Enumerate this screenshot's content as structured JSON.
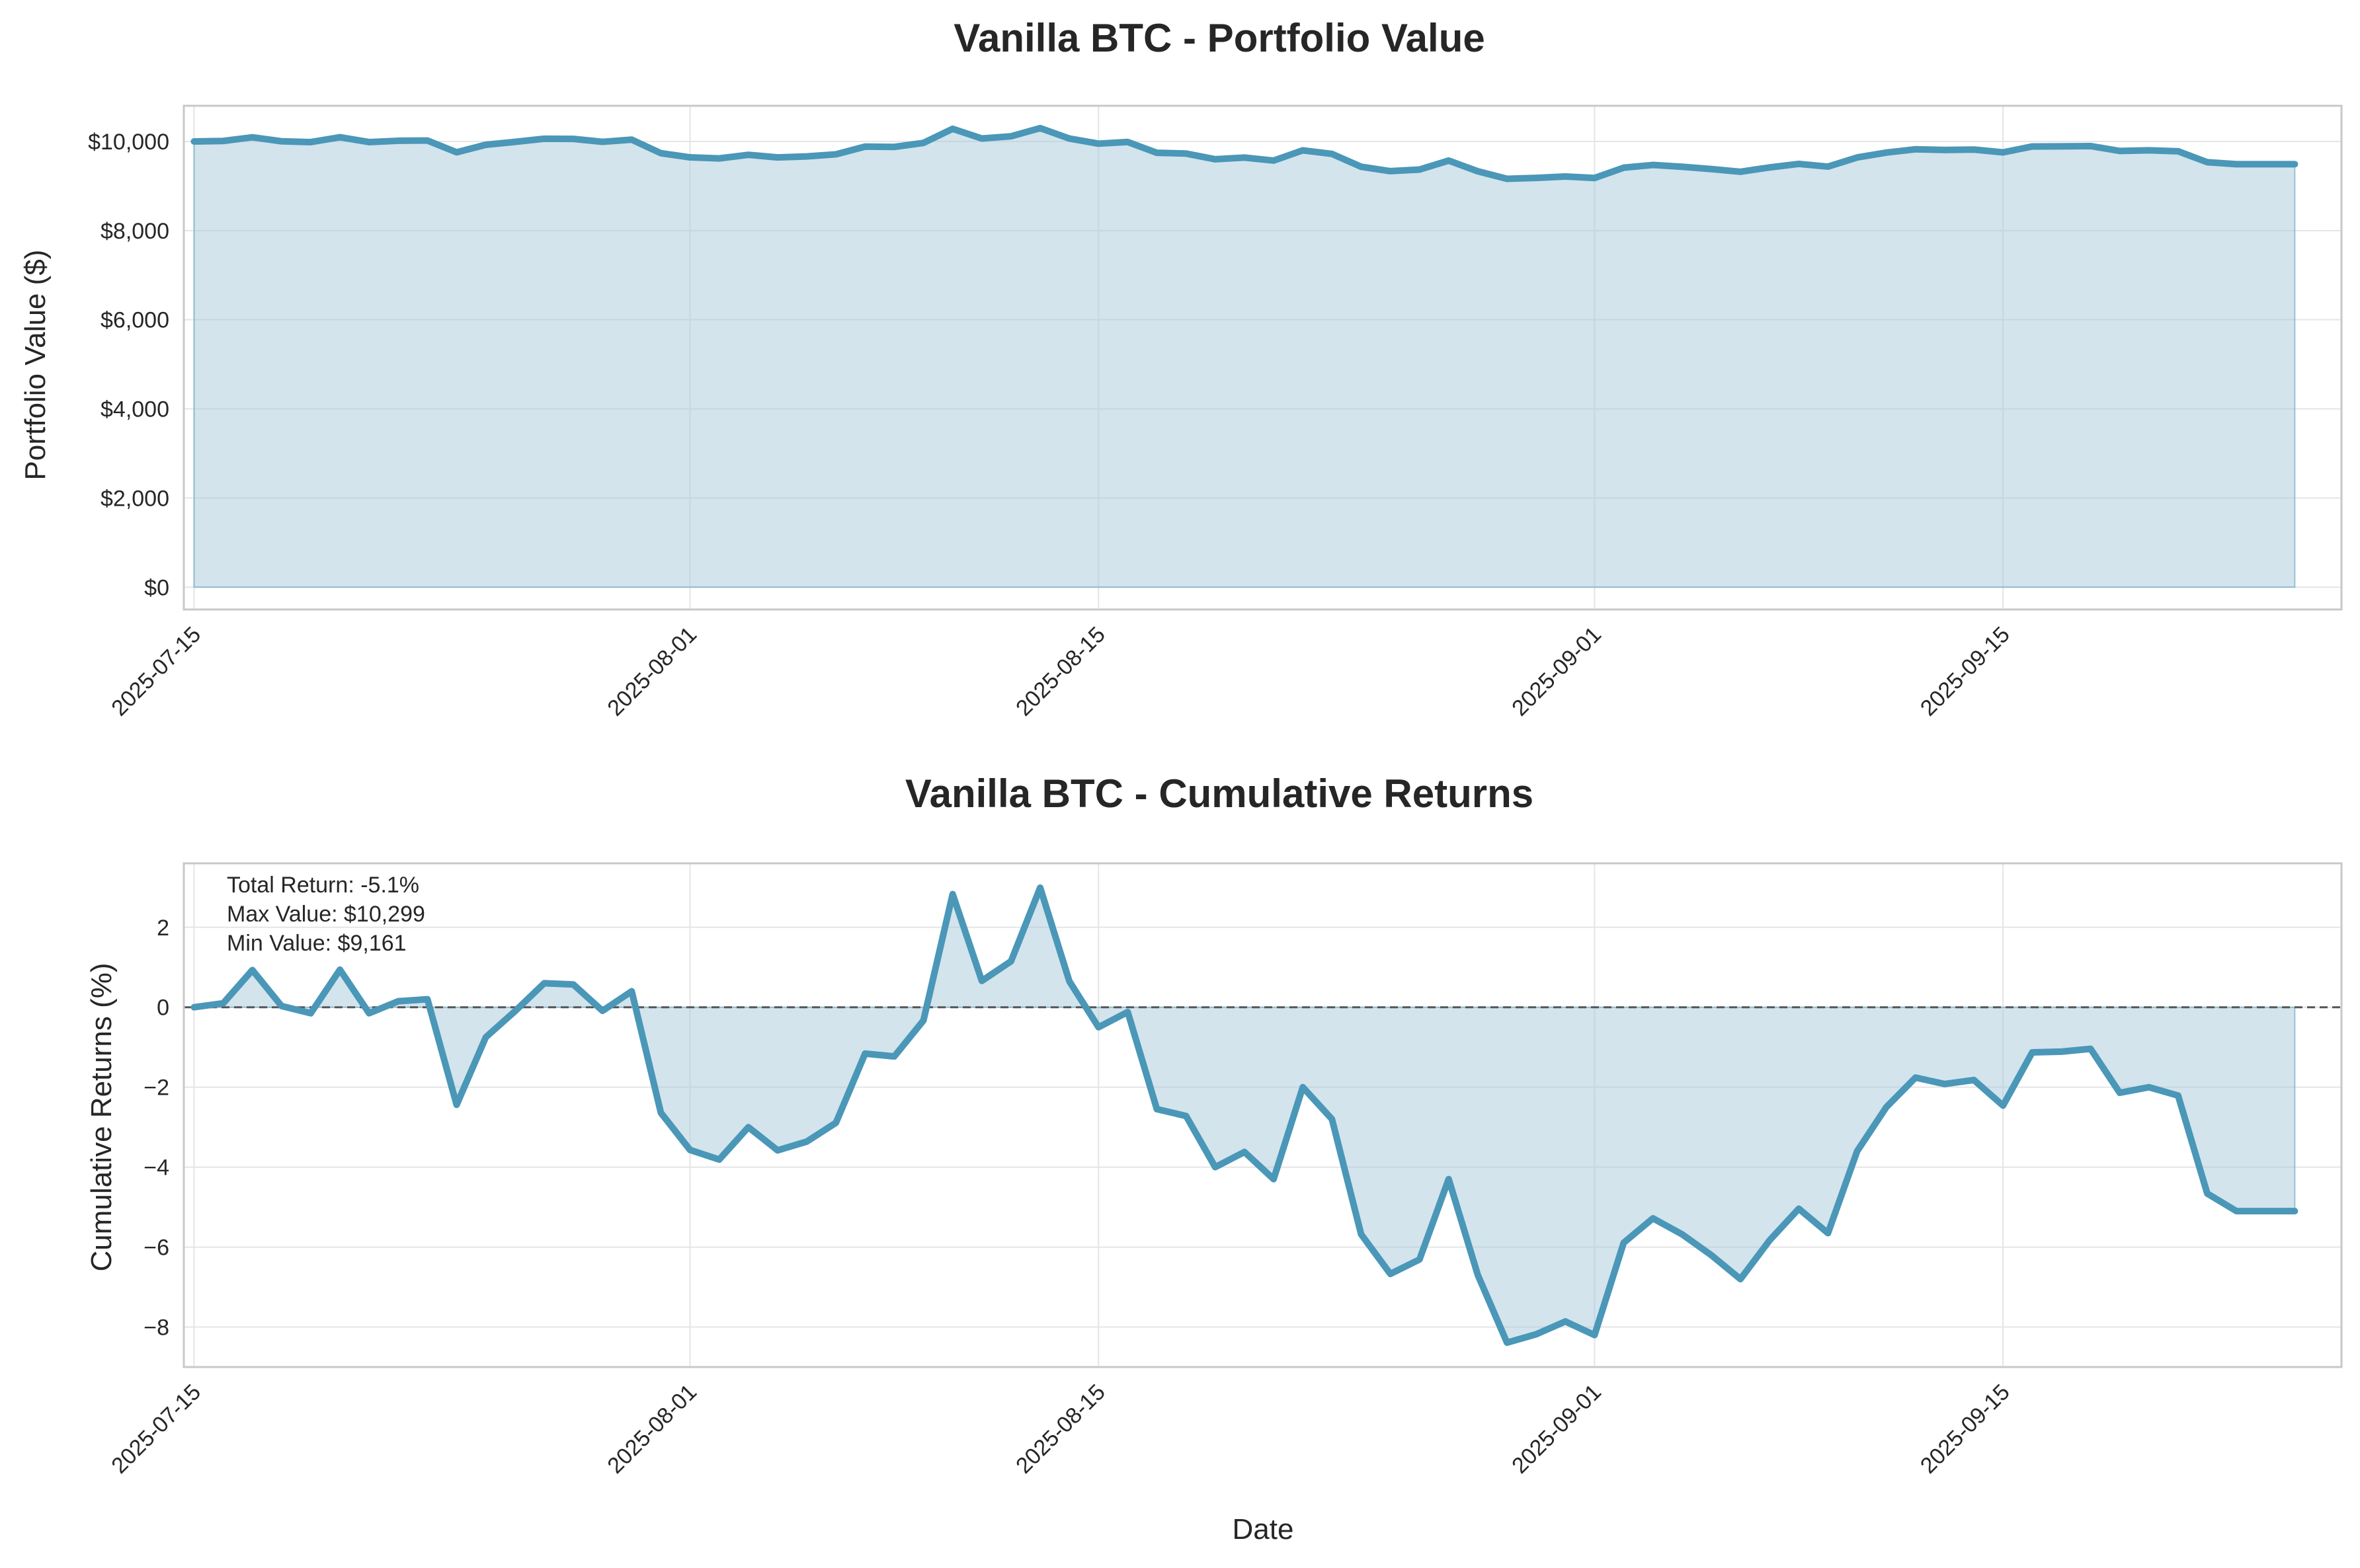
{
  "colors": {
    "line": "#4a97b8",
    "fill": "#a7cadc",
    "grid": "#e5e5e5",
    "spine": "#c8c8c8",
    "zero_line": "#555555",
    "text": "#262626"
  },
  "chart_data": [
    {
      "type": "area",
      "title": "Vanilla BTC - Portfolio Value",
      "xlabel": "",
      "ylabel": "Portfolio Value ($)",
      "x_ticks": [
        "2025-07-15",
        "2025-08-01",
        "2025-08-15",
        "2025-09-01",
        "2025-09-15"
      ],
      "y_ticks": [
        "$0",
        "$2,000",
        "$4,000",
        "$6,000",
        "$8,000",
        "$10,000"
      ],
      "y_tick_values": [
        0,
        2000,
        4000,
        6000,
        8000,
        10000
      ],
      "xlim": [
        "2025-07-15",
        "2025-09-26"
      ],
      "ylim": [
        -500,
        10800
      ],
      "grid": true,
      "series": [
        {
          "x": [
            "2025-07-15",
            "2025-07-16",
            "2025-07-17",
            "2025-07-18",
            "2025-07-19",
            "2025-07-20",
            "2025-07-21",
            "2025-07-22",
            "2025-07-23",
            "2025-07-24",
            "2025-07-25",
            "2025-07-26",
            "2025-07-27",
            "2025-07-28",
            "2025-07-29",
            "2025-07-30",
            "2025-07-31",
            "2025-08-01",
            "2025-08-02",
            "2025-08-03",
            "2025-08-04",
            "2025-08-05",
            "2025-08-06",
            "2025-08-07",
            "2025-08-08",
            "2025-08-09",
            "2025-08-10",
            "2025-08-11",
            "2025-08-12",
            "2025-08-13",
            "2025-08-14",
            "2025-08-15",
            "2025-08-16",
            "2025-08-17",
            "2025-08-18",
            "2025-08-19",
            "2025-08-20",
            "2025-08-21",
            "2025-08-22",
            "2025-08-23",
            "2025-08-24",
            "2025-08-25",
            "2025-08-26",
            "2025-08-27",
            "2025-08-28",
            "2025-08-29",
            "2025-08-30",
            "2025-08-31",
            "2025-09-01",
            "2025-09-02",
            "2025-09-03",
            "2025-09-04",
            "2025-09-05",
            "2025-09-06",
            "2025-09-07",
            "2025-09-08",
            "2025-09-09",
            "2025-09-10",
            "2025-09-11",
            "2025-09-12",
            "2025-09-13",
            "2025-09-14",
            "2025-09-15",
            "2025-09-16",
            "2025-09-17",
            "2025-09-18",
            "2025-09-19",
            "2025-09-20",
            "2025-09-21",
            "2025-09-22",
            "2025-09-23",
            "2025-09-24",
            "2025-09-25"
          ],
          "values": [
            10000,
            10010,
            10093,
            10003,
            9985,
            10094,
            9985,
            10015,
            10020,
            9756,
            9925,
            9990,
            10060,
            10057,
            9991,
            10040,
            9736,
            9643,
            9619,
            9700,
            9642,
            9664,
            9711,
            9884,
            9877,
            9967,
            10283,
            10066,
            10115,
            10299,
            10065,
            9950,
            9988,
            9745,
            9728,
            9600,
            9638,
            9570,
            9800,
            9720,
            9432,
            9333,
            9369,
            9570,
            9330,
            9161,
            9182,
            9214,
            9180,
            9411,
            9472,
            9432,
            9380,
            9320,
            9417,
            9496,
            9435,
            9640,
            9750,
            9824,
            9808,
            9818,
            9754,
            9887,
            9889,
            9896,
            9786,
            9800,
            9779,
            9534,
            9490,
            9490,
            9490
          ]
        }
      ]
    },
    {
      "type": "area",
      "title": "Vanilla BTC - Cumulative Returns",
      "xlabel": "Date",
      "ylabel": "Cumulative Returns (%)",
      "x_ticks": [
        "2025-07-15",
        "2025-08-01",
        "2025-08-15",
        "2025-09-01",
        "2025-09-15"
      ],
      "y_ticks": [
        "−8",
        "−6",
        "−4",
        "−2",
        "0",
        "2"
      ],
      "y_tick_values": [
        -8,
        -6,
        -4,
        -2,
        0,
        2
      ],
      "xlim": [
        "2025-07-15",
        "2025-09-26"
      ],
      "ylim": [
        -9.0,
        3.6
      ],
      "grid": true,
      "annotations": [
        "Total Return: -5.1%",
        "Max Value: $10,299",
        "Min Value: $9,161"
      ],
      "series": [
        {
          "x": [
            "2025-07-15",
            "2025-07-16",
            "2025-07-17",
            "2025-07-18",
            "2025-07-19",
            "2025-07-20",
            "2025-07-21",
            "2025-07-22",
            "2025-07-23",
            "2025-07-24",
            "2025-07-25",
            "2025-07-26",
            "2025-07-27",
            "2025-07-28",
            "2025-07-29",
            "2025-07-30",
            "2025-07-31",
            "2025-08-01",
            "2025-08-02",
            "2025-08-03",
            "2025-08-04",
            "2025-08-05",
            "2025-08-06",
            "2025-08-07",
            "2025-08-08",
            "2025-08-09",
            "2025-08-10",
            "2025-08-11",
            "2025-08-12",
            "2025-08-13",
            "2025-08-14",
            "2025-08-15",
            "2025-08-16",
            "2025-08-17",
            "2025-08-18",
            "2025-08-19",
            "2025-08-20",
            "2025-08-21",
            "2025-08-22",
            "2025-08-23",
            "2025-08-24",
            "2025-08-25",
            "2025-08-26",
            "2025-08-27",
            "2025-08-28",
            "2025-08-29",
            "2025-08-30",
            "2025-08-31",
            "2025-09-01",
            "2025-09-02",
            "2025-09-03",
            "2025-09-04",
            "2025-09-05",
            "2025-09-06",
            "2025-09-07",
            "2025-09-08",
            "2025-09-09",
            "2025-09-10",
            "2025-09-11",
            "2025-09-12",
            "2025-09-13",
            "2025-09-14",
            "2025-09-15",
            "2025-09-16",
            "2025-09-17",
            "2025-09-18",
            "2025-09-19",
            "2025-09-20",
            "2025-09-21",
            "2025-09-22",
            "2025-09-23",
            "2025-09-24",
            "2025-09-25"
          ],
          "values": [
            0.0,
            0.1,
            0.93,
            0.03,
            -0.15,
            0.94,
            -0.15,
            0.15,
            0.2,
            -2.44,
            -0.75,
            -0.1,
            0.6,
            0.57,
            -0.09,
            0.4,
            -2.64,
            -3.57,
            -3.81,
            -3.0,
            -3.58,
            -3.36,
            -2.89,
            -1.16,
            -1.23,
            -0.33,
            2.83,
            0.66,
            1.15,
            2.99,
            0.65,
            -0.5,
            -0.12,
            -2.55,
            -2.72,
            -4.0,
            -3.62,
            -4.3,
            -2.0,
            -2.8,
            -5.68,
            -6.67,
            -6.31,
            -4.3,
            -6.7,
            -8.39,
            -8.18,
            -7.86,
            -8.2,
            -5.89,
            -5.28,
            -5.68,
            -6.2,
            -6.8,
            -5.83,
            -5.04,
            -5.65,
            -3.6,
            -2.5,
            -1.76,
            -1.92,
            -1.82,
            -2.46,
            -1.13,
            -1.11,
            -1.04,
            -2.14,
            -2.0,
            -2.21,
            -4.66,
            -5.1,
            -5.1,
            -5.1
          ]
        }
      ]
    }
  ]
}
